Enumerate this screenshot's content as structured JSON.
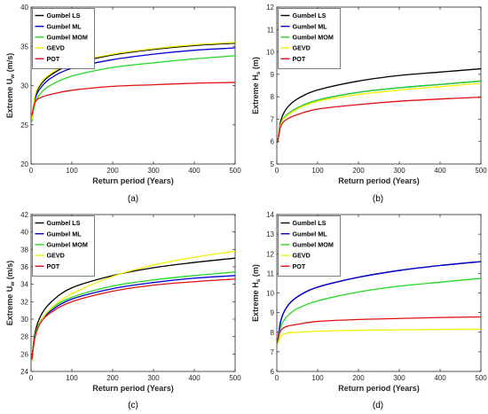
{
  "colors": {
    "Gumbel LS": "#000000",
    "Gumbel ML": "#0000d8",
    "Gumbel MOM": "#22d822",
    "GEVD": "#f0f000",
    "POT": "#e01010"
  },
  "chart_data": [
    {
      "type": "line",
      "panel_label": "(a)",
      "xlabel": "Return period (Years)",
      "ylabel": "Extreme U",
      "ylabel_sub": "w",
      "ylabel_unit": " (m/s)",
      "xlim": [
        0,
        500
      ],
      "ylim": [
        20,
        40
      ],
      "xticks": [
        0,
        100,
        200,
        300,
        400,
        500
      ],
      "yticks": [
        20,
        25,
        30,
        35,
        40
      ],
      "legend": "top-left",
      "grid": false,
      "series": [
        {
          "name": "Gumbel LS",
          "x": [
            2,
            10,
            25,
            50,
            100,
            200,
            300,
            400,
            500
          ],
          "y": [
            25.6,
            28.6,
            30.2,
            31.4,
            32.7,
            33.9,
            34.6,
            35.1,
            35.4
          ]
        },
        {
          "name": "Gumbel ML",
          "x": [
            2,
            10,
            25,
            50,
            100,
            200,
            300,
            400,
            500
          ],
          "y": [
            25.5,
            28.3,
            29.8,
            31.0,
            32.2,
            33.3,
            34.0,
            34.5,
            34.8
          ]
        },
        {
          "name": "Gumbel MOM",
          "x": [
            2,
            10,
            25,
            50,
            100,
            200,
            300,
            400,
            500
          ],
          "y": [
            25.4,
            27.8,
            29.1,
            30.1,
            31.2,
            32.3,
            32.9,
            33.4,
            33.8
          ]
        },
        {
          "name": "GEVD",
          "x": [
            2,
            10,
            25,
            50,
            100,
            200,
            300,
            400,
            500
          ],
          "y": [
            25.6,
            28.8,
            30.4,
            31.6,
            32.9,
            34.0,
            34.7,
            35.2,
            35.5
          ]
        },
        {
          "name": "POT",
          "x": [
            2,
            10,
            25,
            50,
            100,
            200,
            300,
            400,
            500
          ],
          "y": [
            26.2,
            27.9,
            28.5,
            28.9,
            29.4,
            29.9,
            30.1,
            30.3,
            30.4
          ]
        }
      ]
    },
    {
      "type": "line",
      "panel_label": "(b)",
      "xlabel": "Return period (Years)",
      "ylabel": "Extreme H",
      "ylabel_sub": "s",
      "ylabel_unit": " (m)",
      "xlim": [
        0,
        500
      ],
      "ylim": [
        5,
        12
      ],
      "xticks": [
        0,
        100,
        200,
        300,
        400,
        500
      ],
      "yticks": [
        5,
        6,
        7,
        8,
        9,
        10,
        11,
        12
      ],
      "legend": "top-left",
      "grid": false,
      "series": [
        {
          "name": "Gumbel LS",
          "x": [
            2,
            10,
            25,
            50,
            100,
            200,
            300,
            400,
            500
          ],
          "y": [
            5.95,
            6.95,
            7.5,
            7.9,
            8.3,
            8.7,
            8.95,
            9.1,
            9.25
          ]
        },
        {
          "name": "Gumbel ML",
          "x": [
            2,
            10,
            25,
            50,
            100,
            200,
            300,
            400,
            500
          ],
          "y": [
            5.95,
            6.8,
            7.2,
            7.5,
            7.85,
            8.2,
            8.4,
            8.55,
            8.7
          ]
        },
        {
          "name": "Gumbel MOM",
          "x": [
            2,
            10,
            25,
            50,
            100,
            200,
            300,
            400,
            500
          ],
          "y": [
            5.95,
            6.8,
            7.2,
            7.5,
            7.85,
            8.2,
            8.4,
            8.55,
            8.7
          ]
        },
        {
          "name": "GEVD",
          "x": [
            2,
            10,
            25,
            50,
            100,
            200,
            300,
            400,
            500
          ],
          "y": [
            5.95,
            6.8,
            7.15,
            7.45,
            7.8,
            8.1,
            8.3,
            8.45,
            8.6
          ]
        },
        {
          "name": "POT",
          "x": [
            2,
            10,
            25,
            50,
            100,
            200,
            300,
            400,
            500
          ],
          "y": [
            5.95,
            6.7,
            7.0,
            7.2,
            7.45,
            7.65,
            7.8,
            7.9,
            7.98
          ]
        }
      ]
    },
    {
      "type": "line",
      "panel_label": "(c)",
      "xlabel": "Return period (Years)",
      "ylabel": "Extreme U",
      "ylabel_sub": "w",
      "ylabel_unit": " (m/s)",
      "xlim": [
        0,
        500
      ],
      "ylim": [
        24,
        42
      ],
      "xticks": [
        0,
        100,
        200,
        300,
        400,
        500
      ],
      "yticks": [
        24,
        26,
        28,
        30,
        32,
        34,
        36,
        38,
        40,
        42
      ],
      "legend": "top-left",
      "grid": false,
      "series": [
        {
          "name": "Gumbel LS",
          "x": [
            2,
            10,
            25,
            50,
            100,
            200,
            300,
            400,
            500
          ],
          "y": [
            25.4,
            28.5,
            30.5,
            32.0,
            33.6,
            35.0,
            35.9,
            36.5,
            37.0
          ]
        },
        {
          "name": "Gumbel ML",
          "x": [
            2,
            10,
            25,
            50,
            100,
            200,
            300,
            400,
            500
          ],
          "y": [
            25.3,
            28.1,
            29.8,
            31.0,
            32.3,
            33.5,
            34.2,
            34.7,
            35.0
          ]
        },
        {
          "name": "Gumbel MOM",
          "x": [
            2,
            10,
            25,
            50,
            100,
            200,
            300,
            400,
            500
          ],
          "y": [
            25.3,
            28.2,
            29.9,
            31.2,
            32.5,
            33.8,
            34.5,
            35.0,
            35.4
          ]
        },
        {
          "name": "GEVD",
          "x": [
            2,
            10,
            25,
            50,
            100,
            200,
            300,
            400,
            500
          ],
          "y": [
            25.2,
            27.9,
            29.8,
            31.3,
            32.9,
            34.9,
            36.2,
            37.1,
            37.8
          ]
        },
        {
          "name": "POT",
          "x": [
            2,
            10,
            25,
            50,
            100,
            200,
            300,
            400,
            500
          ],
          "y": [
            25.4,
            28.0,
            29.7,
            30.8,
            32.0,
            33.2,
            33.9,
            34.3,
            34.6
          ]
        }
      ]
    },
    {
      "type": "line",
      "panel_label": "(d)",
      "xlabel": "Return period (Years)",
      "ylabel": "Extreme H",
      "ylabel_sub": "s",
      "ylabel_unit": " (m)",
      "xlim": [
        0,
        500
      ],
      "ylim": [
        6,
        14
      ],
      "xticks": [
        0,
        100,
        200,
        300,
        400,
        500
      ],
      "yticks": [
        6,
        7,
        8,
        9,
        10,
        11,
        12,
        13,
        14
      ],
      "legend": "top-left",
      "grid": false,
      "series": [
        {
          "name": "Gumbel LS",
          "x": [
            2,
            10,
            25,
            50,
            100,
            200,
            300,
            400,
            500
          ],
          "y": [
            7.5,
            8.6,
            9.3,
            9.8,
            10.3,
            10.8,
            11.15,
            11.4,
            11.6
          ]
        },
        {
          "name": "Gumbel ML",
          "x": [
            2,
            10,
            25,
            50,
            100,
            200,
            300,
            400,
            500
          ],
          "y": [
            7.5,
            8.6,
            9.3,
            9.8,
            10.3,
            10.8,
            11.15,
            11.4,
            11.6
          ]
        },
        {
          "name": "Gumbel MOM",
          "x": [
            2,
            10,
            25,
            50,
            100,
            200,
            300,
            400,
            500
          ],
          "y": [
            7.4,
            8.3,
            8.8,
            9.2,
            9.6,
            10.05,
            10.35,
            10.55,
            10.75
          ]
        },
        {
          "name": "GEVD",
          "x": [
            2,
            10,
            25,
            50,
            100,
            200,
            300,
            400,
            500
          ],
          "y": [
            7.35,
            7.8,
            7.95,
            8.0,
            8.05,
            8.1,
            8.12,
            8.14,
            8.15
          ]
        },
        {
          "name": "POT",
          "x": [
            2,
            10,
            25,
            50,
            100,
            200,
            300,
            400,
            500
          ],
          "y": [
            7.6,
            8.1,
            8.3,
            8.4,
            8.55,
            8.65,
            8.7,
            8.75,
            8.78
          ]
        }
      ]
    }
  ]
}
